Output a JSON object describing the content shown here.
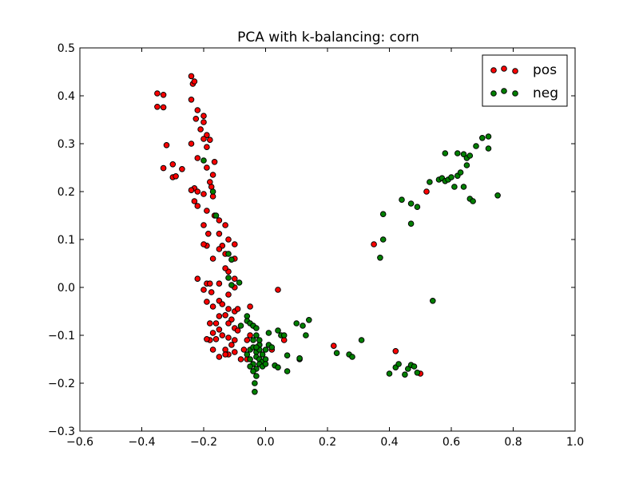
{
  "chart_data": {
    "type": "scatter",
    "title": "PCA with k-balancing: corn",
    "xlabel": "",
    "ylabel": "",
    "xlim": [
      -0.6,
      1.0
    ],
    "ylim": [
      -0.3,
      0.5
    ],
    "x_ticks": [
      -0.6,
      -0.4,
      -0.2,
      0.0,
      0.2,
      0.4,
      0.6,
      0.8,
      1.0
    ],
    "y_ticks": [
      -0.3,
      -0.2,
      -0.1,
      0.0,
      0.1,
      0.2,
      0.3,
      0.4,
      0.5
    ],
    "x_tick_labels": [
      "−0.6",
      "−0.4",
      "−0.2",
      "0.0",
      "0.2",
      "0.4",
      "0.6",
      "0.8",
      "1.0"
    ],
    "y_tick_labels": [
      "−0.3",
      "−0.2",
      "−0.1",
      "0.0",
      "0.1",
      "0.2",
      "0.3",
      "0.4",
      "0.5"
    ],
    "grid": false,
    "legend_position": "top-right",
    "series": [
      {
        "name": "pos",
        "color": "#ff0000",
        "points": [
          [
            -0.35,
            0.405
          ],
          [
            -0.33,
            0.402
          ],
          [
            -0.35,
            0.377
          ],
          [
            -0.33,
            0.376
          ],
          [
            -0.32,
            0.297
          ],
          [
            -0.33,
            0.249
          ],
          [
            -0.3,
            0.257
          ],
          [
            -0.3,
            0.23
          ],
          [
            -0.29,
            0.232
          ],
          [
            -0.27,
            0.247
          ],
          [
            -0.24,
            0.441
          ],
          [
            -0.235,
            0.425
          ],
          [
            -0.23,
            0.43
          ],
          [
            -0.24,
            0.392
          ],
          [
            -0.22,
            0.37
          ],
          [
            -0.225,
            0.352
          ],
          [
            -0.2,
            0.358
          ],
          [
            -0.2,
            0.345
          ],
          [
            -0.21,
            0.33
          ],
          [
            -0.19,
            0.318
          ],
          [
            -0.2,
            0.31
          ],
          [
            -0.18,
            0.308
          ],
          [
            -0.19,
            0.293
          ],
          [
            -0.24,
            0.3
          ],
          [
            -0.22,
            0.27
          ],
          [
            -0.19,
            0.25
          ],
          [
            -0.17,
            0.235
          ],
          [
            -0.165,
            0.262
          ],
          [
            -0.23,
            0.207
          ],
          [
            -0.24,
            0.203
          ],
          [
            -0.22,
            0.2
          ],
          [
            -0.2,
            0.195
          ],
          [
            -0.17,
            0.19
          ],
          [
            -0.175,
            0.21
          ],
          [
            -0.18,
            0.22
          ],
          [
            -0.23,
            0.18
          ],
          [
            -0.22,
            0.17
          ],
          [
            -0.19,
            0.16
          ],
          [
            -0.165,
            0.15
          ],
          [
            -0.15,
            0.14
          ],
          [
            -0.2,
            0.13
          ],
          [
            -0.13,
            0.13
          ],
          [
            -0.15,
            0.112
          ],
          [
            -0.185,
            0.112
          ],
          [
            -0.12,
            0.1
          ],
          [
            -0.14,
            0.087
          ],
          [
            -0.19,
            0.087
          ],
          [
            -0.1,
            0.09
          ],
          [
            -0.13,
            0.07
          ],
          [
            -0.15,
            0.08
          ],
          [
            -0.2,
            0.09
          ],
          [
            -0.1,
            0.06
          ],
          [
            -0.17,
            0.06
          ],
          [
            -0.12,
            0.033
          ],
          [
            -0.13,
            0.04
          ],
          [
            -0.1,
            0.018
          ],
          [
            -0.22,
            0.018
          ],
          [
            -0.19,
            0.008
          ],
          [
            -0.18,
            0.008
          ],
          [
            -0.15,
            0.008
          ],
          [
            -0.2,
            -0.005
          ],
          [
            -0.175,
            -0.01
          ],
          [
            -0.12,
            -0.015
          ],
          [
            -0.1,
            0.0
          ],
          [
            -0.19,
            -0.03
          ],
          [
            -0.17,
            -0.04
          ],
          [
            -0.15,
            -0.028
          ],
          [
            -0.14,
            -0.035
          ],
          [
            -0.12,
            -0.045
          ],
          [
            -0.13,
            -0.058
          ],
          [
            -0.1,
            -0.05
          ],
          [
            -0.09,
            -0.045
          ],
          [
            -0.11,
            -0.067
          ],
          [
            -0.12,
            -0.075
          ],
          [
            -0.1,
            -0.085
          ],
          [
            -0.15,
            -0.06
          ],
          [
            -0.16,
            -0.075
          ],
          [
            -0.18,
            -0.075
          ],
          [
            -0.15,
            -0.088
          ],
          [
            -0.17,
            -0.095
          ],
          [
            -0.14,
            -0.1
          ],
          [
            -0.12,
            -0.105
          ],
          [
            -0.09,
            -0.09
          ],
          [
            -0.1,
            -0.11
          ],
          [
            -0.11,
            -0.12
          ],
          [
            -0.13,
            -0.13
          ],
          [
            -0.12,
            -0.14
          ],
          [
            -0.1,
            -0.135
          ],
          [
            -0.08,
            -0.15
          ],
          [
            -0.16,
            -0.108
          ],
          [
            -0.18,
            -0.11
          ],
          [
            -0.19,
            -0.108
          ],
          [
            -0.17,
            -0.13
          ],
          [
            -0.15,
            -0.145
          ],
          [
            -0.13,
            -0.14
          ],
          [
            -0.06,
            -0.11
          ],
          [
            -0.05,
            -0.1
          ],
          [
            -0.04,
            -0.08
          ],
          [
            -0.05,
            -0.04
          ],
          [
            0.04,
            -0.005
          ],
          [
            0.02,
            -0.13
          ],
          [
            -0.02,
            -0.12
          ],
          [
            0.06,
            -0.11
          ],
          [
            0.22,
            -0.122
          ],
          [
            0.35,
            0.09
          ],
          [
            0.42,
            -0.133
          ],
          [
            0.5,
            -0.18
          ],
          [
            0.52,
            0.2
          ],
          [
            -0.07,
            -0.13
          ],
          [
            -0.06,
            -0.15
          ]
        ]
      },
      {
        "name": "neg",
        "color": "#008000",
        "points": [
          [
            -0.2,
            0.265
          ],
          [
            -0.17,
            0.2
          ],
          [
            -0.16,
            0.15
          ],
          [
            -0.12,
            0.07
          ],
          [
            -0.11,
            0.058
          ],
          [
            -0.12,
            0.02
          ],
          [
            -0.11,
            0.005
          ],
          [
            -0.085,
            0.01
          ],
          [
            -0.06,
            -0.06
          ],
          [
            -0.08,
            -0.08
          ],
          [
            -0.06,
            -0.07
          ],
          [
            -0.05,
            -0.075
          ],
          [
            -0.04,
            -0.08
          ],
          [
            -0.03,
            -0.085
          ],
          [
            -0.03,
            -0.1
          ],
          [
            -0.04,
            -0.11
          ],
          [
            -0.02,
            -0.12
          ],
          [
            -0.05,
            -0.13
          ],
          [
            -0.04,
            -0.125
          ],
          [
            -0.03,
            -0.135
          ],
          [
            -0.02,
            -0.13
          ],
          [
            -0.01,
            -0.14
          ],
          [
            -0.03,
            -0.145
          ],
          [
            -0.02,
            -0.15
          ],
          [
            -0.01,
            -0.155
          ],
          [
            0.0,
            -0.15
          ],
          [
            -0.04,
            -0.16
          ],
          [
            -0.03,
            -0.17
          ],
          [
            -0.02,
            -0.16
          ],
          [
            -0.01,
            -0.165
          ],
          [
            0.0,
            -0.16
          ],
          [
            -0.05,
            -0.15
          ],
          [
            -0.06,
            -0.14
          ],
          [
            -0.05,
            -0.165
          ],
          [
            -0.04,
            -0.175
          ],
          [
            -0.03,
            -0.185
          ],
          [
            -0.035,
            -0.2
          ],
          [
            -0.035,
            -0.218
          ],
          [
            -0.03,
            -0.125
          ],
          [
            -0.02,
            -0.11
          ],
          [
            0.0,
            -0.13
          ],
          [
            0.01,
            -0.12
          ],
          [
            0.02,
            -0.125
          ],
          [
            0.01,
            -0.095
          ],
          [
            0.04,
            -0.09
          ],
          [
            0.05,
            -0.1
          ],
          [
            0.06,
            -0.1
          ],
          [
            0.1,
            -0.075
          ],
          [
            0.14,
            -0.068
          ],
          [
            0.12,
            -0.08
          ],
          [
            0.13,
            -0.1
          ],
          [
            0.07,
            -0.142
          ],
          [
            0.11,
            -0.15
          ],
          [
            0.11,
            -0.148
          ],
          [
            0.03,
            -0.163
          ],
          [
            0.04,
            -0.167
          ],
          [
            0.07,
            -0.175
          ],
          [
            0.23,
            -0.137
          ],
          [
            0.27,
            -0.14
          ],
          [
            0.28,
            -0.145
          ],
          [
            0.31,
            -0.11
          ],
          [
            0.38,
            0.153
          ],
          [
            0.44,
            0.183
          ],
          [
            0.47,
            0.175
          ],
          [
            0.49,
            0.168
          ],
          [
            0.47,
            0.133
          ],
          [
            0.38,
            0.1
          ],
          [
            0.37,
            0.062
          ],
          [
            0.4,
            -0.18
          ],
          [
            0.42,
            -0.167
          ],
          [
            0.43,
            -0.16
          ],
          [
            0.45,
            -0.182
          ],
          [
            0.46,
            -0.17
          ],
          [
            0.47,
            -0.162
          ],
          [
            0.48,
            -0.165
          ],
          [
            0.49,
            -0.178
          ],
          [
            0.54,
            -0.028
          ],
          [
            0.53,
            0.22
          ],
          [
            0.56,
            0.225
          ],
          [
            0.57,
            0.228
          ],
          [
            0.58,
            0.222
          ],
          [
            0.59,
            0.225
          ],
          [
            0.6,
            0.23
          ],
          [
            0.61,
            0.21
          ],
          [
            0.62,
            0.233
          ],
          [
            0.58,
            0.28
          ],
          [
            0.62,
            0.28
          ],
          [
            0.64,
            0.278
          ],
          [
            0.65,
            0.27
          ],
          [
            0.66,
            0.275
          ],
          [
            0.68,
            0.295
          ],
          [
            0.7,
            0.312
          ],
          [
            0.72,
            0.315
          ],
          [
            0.72,
            0.29
          ],
          [
            0.65,
            0.255
          ],
          [
            0.63,
            0.24
          ],
          [
            0.64,
            0.21
          ],
          [
            0.66,
            0.185
          ],
          [
            0.67,
            0.18
          ],
          [
            0.75,
            0.192
          ]
        ]
      }
    ]
  }
}
